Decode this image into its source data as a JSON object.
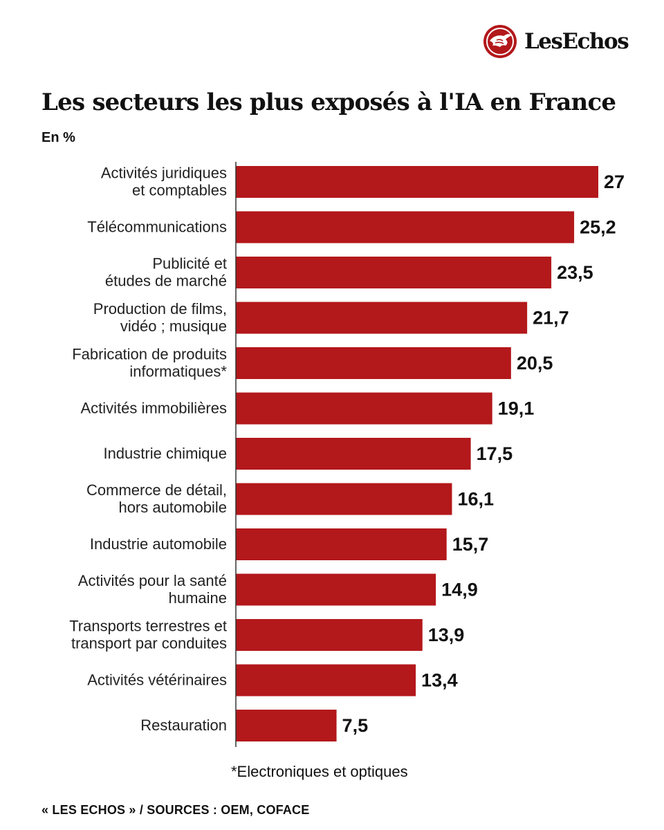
{
  "brand": {
    "name": "LesEchos",
    "logo_icon": "eagle-icon",
    "accent": "#b3181b"
  },
  "chart_data": {
    "type": "bar",
    "orientation": "horizontal",
    "title": "Les secteurs les plus exposés à l'IA en France",
    "unit_label": "En %",
    "categories": [
      [
        "Activités juridiques",
        "et comptables"
      ],
      [
        "Télécommunications"
      ],
      [
        "Publicité et",
        "études de marché"
      ],
      [
        "Production de films,",
        "vidéo ; musique"
      ],
      [
        "Fabrication de produits",
        "informatiques*"
      ],
      [
        "Activités immobilières"
      ],
      [
        "Industrie chimique"
      ],
      [
        "Commerce de détail,",
        "hors automobile"
      ],
      [
        "Industrie automobile"
      ],
      [
        "Activités pour la santé",
        "humaine"
      ],
      [
        "Transports terrestres et",
        "transport par conduites"
      ],
      [
        "Activités vétérinaires"
      ],
      [
        "Restauration"
      ]
    ],
    "values": [
      27,
      25.2,
      23.5,
      21.7,
      20.5,
      19.1,
      17.5,
      16.1,
      15.7,
      14.9,
      13.9,
      13.4,
      7.5
    ],
    "value_labels": [
      "27",
      "25,2",
      "23,5",
      "21,7",
      "20,5",
      "19,1",
      "17,5",
      "16,1",
      "15,7",
      "14,9",
      "13,9",
      "13,4",
      "7,5"
    ],
    "xlim": [
      0,
      27
    ],
    "bar_color": "#b3181b",
    "grid": false,
    "footnote": "*Electroniques et optiques",
    "source": "« LES ECHOS » / SOURCES : OEM, COFACE"
  }
}
